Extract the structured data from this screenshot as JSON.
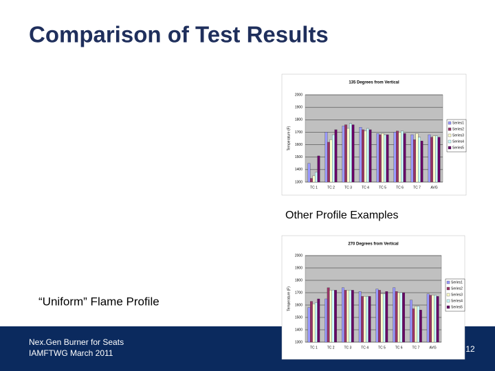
{
  "slide": {
    "title": "Comparison of Test Results",
    "caption": "Other Profile Examples",
    "profile_label": "“Uniform” Flame Profile",
    "footer_line1": "Nex.Gen Burner for Seats",
    "footer_line2": "IAMFTWG March 2011",
    "page_number": "12"
  },
  "chart_data": [
    {
      "type": "bar",
      "title": "135 Degrees from Vertical",
      "y_label": "Temperature (F)",
      "categories": [
        "TC 1",
        "TC 2",
        "TC 3",
        "TC 4",
        "TC 5",
        "TC 6",
        "TC 7",
        "AVG"
      ],
      "ylim": [
        1300,
        2000
      ],
      "yticks": [
        1300,
        1400,
        1500,
        1600,
        1700,
        1800,
        1900,
        2000
      ],
      "grid": true,
      "legend": "right",
      "series": [
        {
          "name": "Series1",
          "color": "#9999ff",
          "values": [
            1450,
            1700,
            1750,
            1740,
            1690,
            1700,
            1680,
            1680
          ]
        },
        {
          "name": "Series2",
          "color": "#993366",
          "values": [
            1330,
            1620,
            1760,
            1720,
            1680,
            1710,
            1640,
            1660
          ]
        },
        {
          "name": "Series3",
          "color": "#ffffcc",
          "values": [
            1350,
            1640,
            1730,
            1710,
            1690,
            1700,
            1690,
            1670
          ]
        },
        {
          "name": "Series4",
          "color": "#ccffff",
          "values": [
            1380,
            1680,
            1770,
            1730,
            1680,
            1710,
            1660,
            1670
          ]
        },
        {
          "name": "Series5",
          "color": "#660066",
          "values": [
            1510,
            1720,
            1760,
            1720,
            1680,
            1690,
            1630,
            1660
          ]
        }
      ]
    },
    {
      "type": "bar",
      "title": "270 Degrees from Vertical",
      "y_label": "Temperature (F)",
      "categories": [
        "TC 1",
        "TC 2",
        "TC 3",
        "TC 4",
        "TC 5",
        "TC 6",
        "TC 7",
        "AVG"
      ],
      "ylim": [
        1300,
        2000
      ],
      "yticks": [
        1300,
        1400,
        1500,
        1600,
        1700,
        1800,
        1900,
        2000
      ],
      "grid": true,
      "legend": "right",
      "series": [
        {
          "name": "Series1",
          "color": "#9999ff",
          "values": [
            1580,
            1650,
            1740,
            1710,
            1730,
            1740,
            1640,
            1690
          ]
        },
        {
          "name": "Series2",
          "color": "#993366",
          "values": [
            1630,
            1740,
            1720,
            1670,
            1720,
            1710,
            1570,
            1680
          ]
        },
        {
          "name": "Series3",
          "color": "#ffffcc",
          "values": [
            1610,
            1720,
            1720,
            1670,
            1690,
            1700,
            1590,
            1680
          ]
        },
        {
          "name": "Series4",
          "color": "#ccffff",
          "values": [
            1620,
            1720,
            1720,
            1670,
            1690,
            1700,
            1590,
            1680
          ]
        },
        {
          "name": "Series5",
          "color": "#660066",
          "values": [
            1650,
            1720,
            1720,
            1670,
            1710,
            1700,
            1560,
            1670
          ]
        }
      ]
    }
  ]
}
